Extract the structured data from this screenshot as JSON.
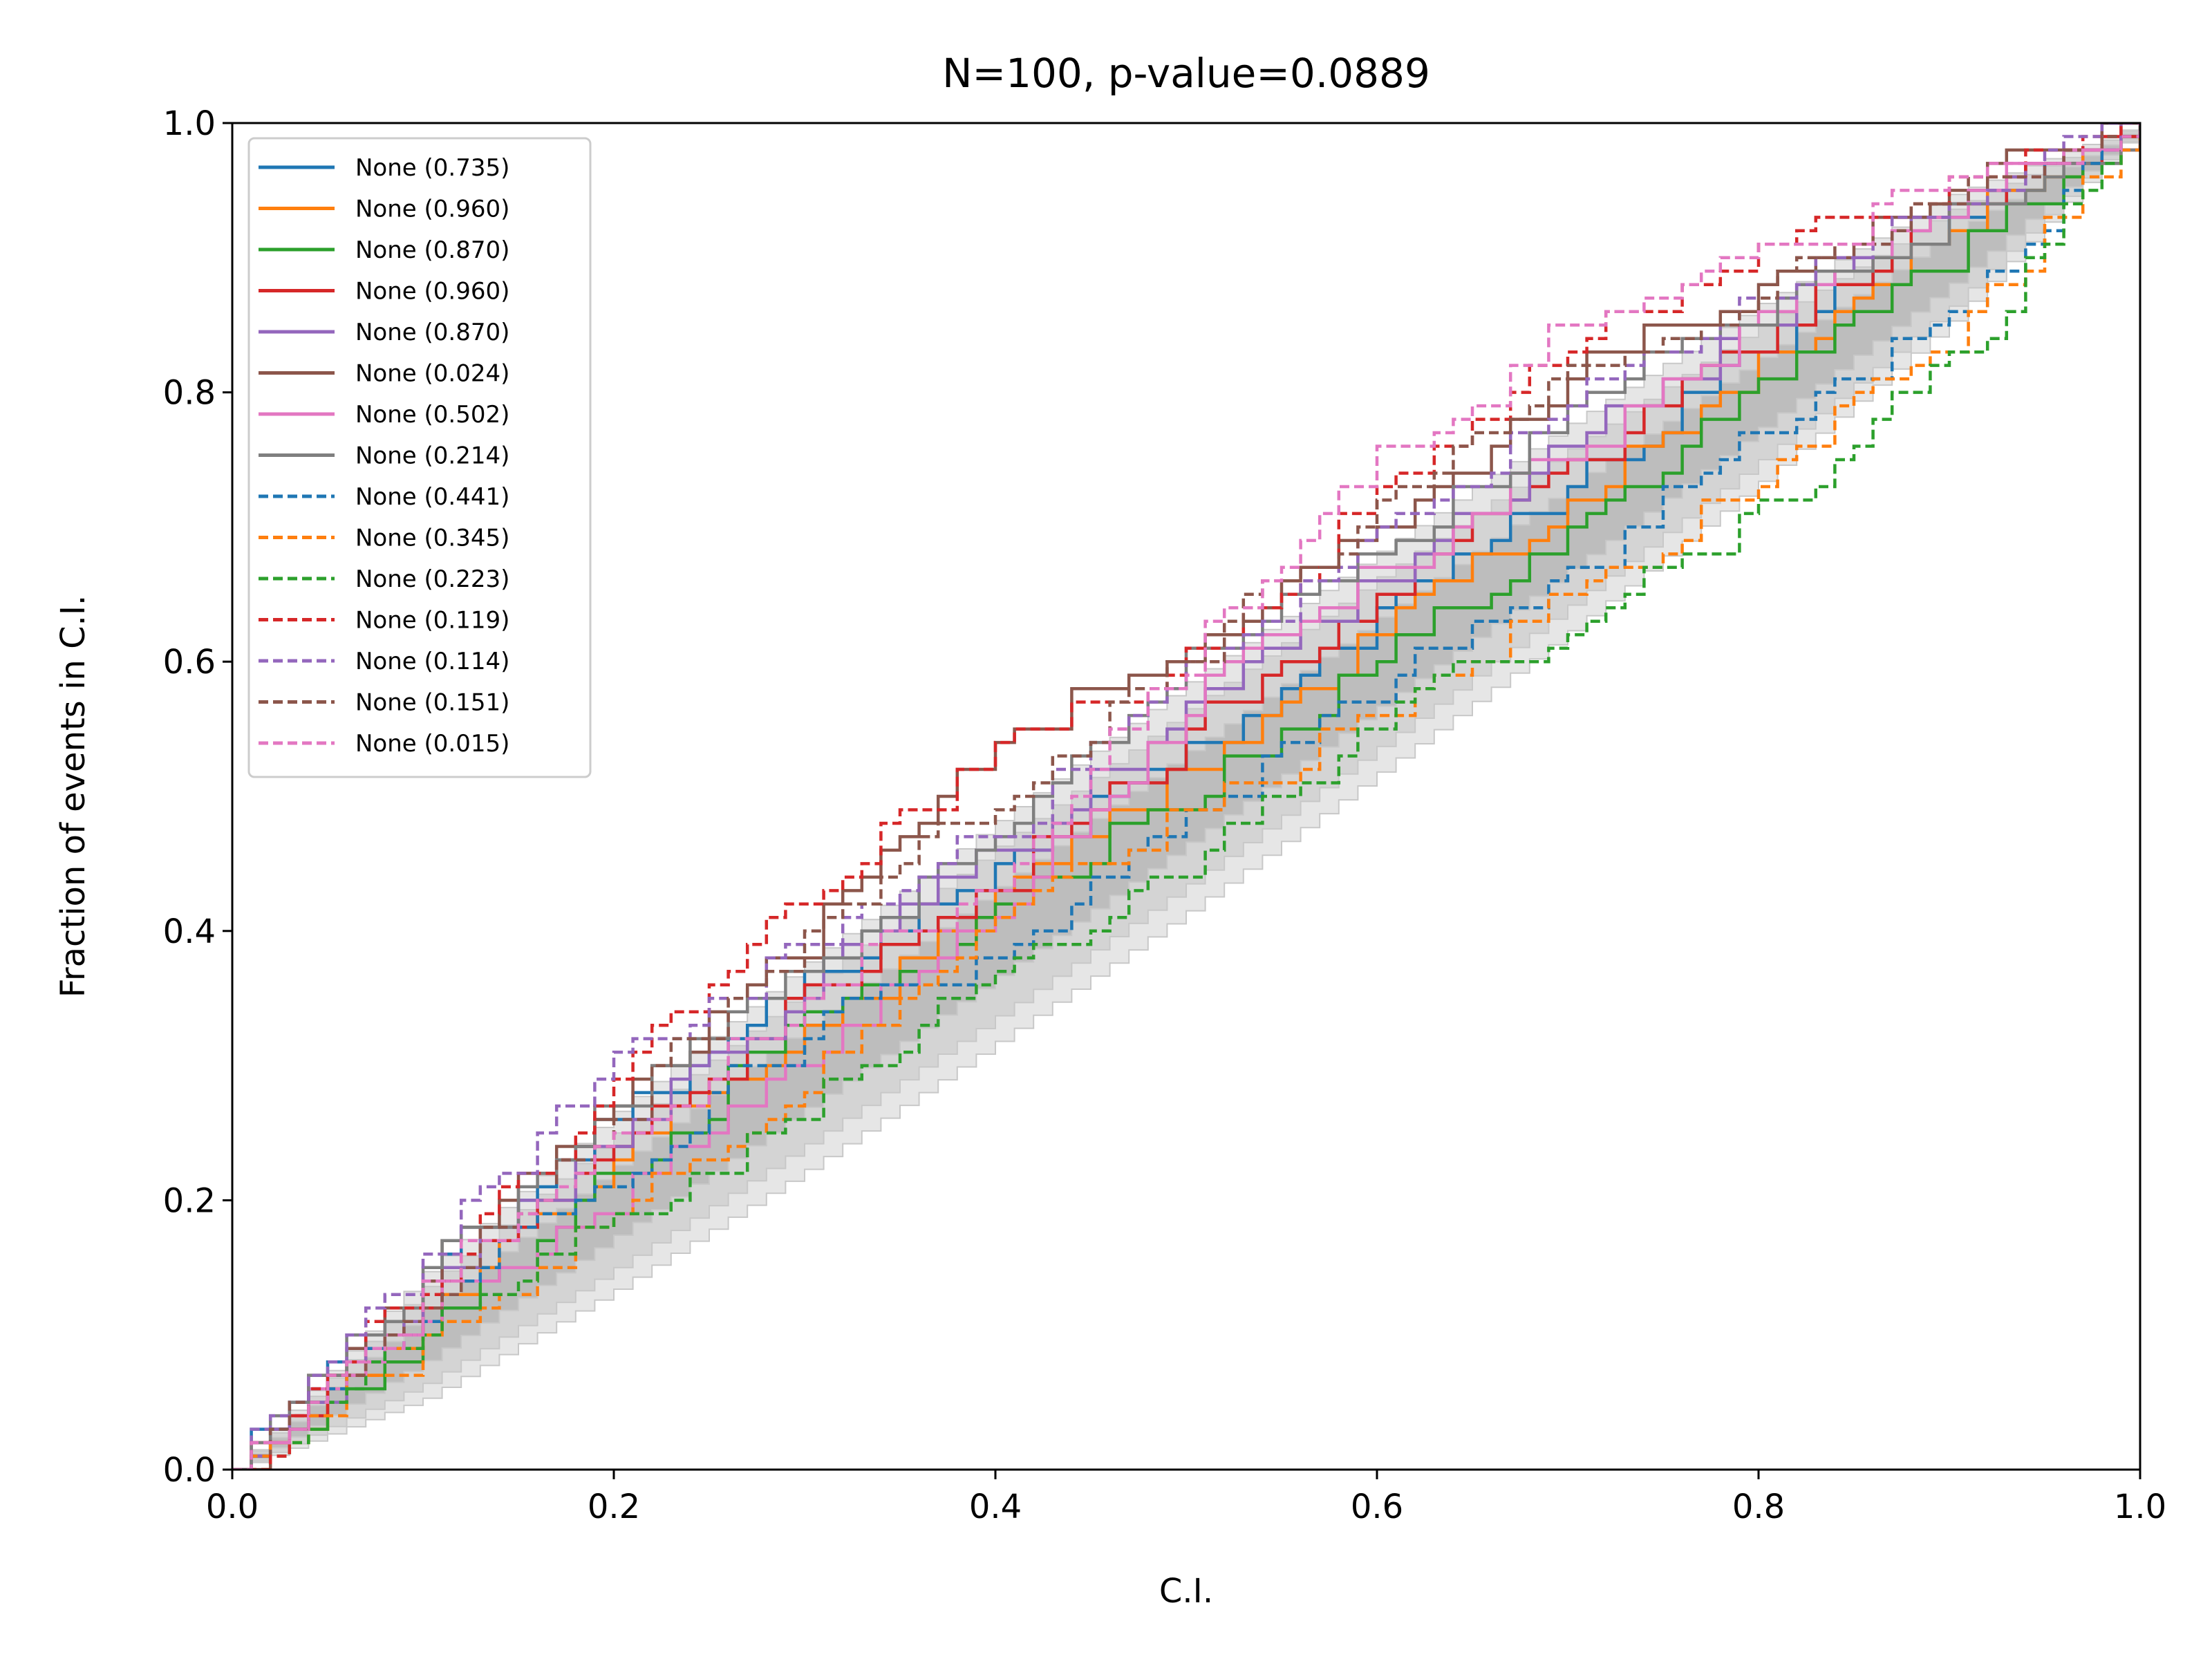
{
  "chart_data": {
    "type": "line",
    "title": "N=100, p-value=0.0889",
    "xlabel": "C.I.",
    "ylabel": "Fraction of events in C.I.",
    "xlim": [
      0,
      1
    ],
    "ylim": [
      0,
      1
    ],
    "x_ticks": [
      "0.0",
      "0.2",
      "0.4",
      "0.6",
      "0.8",
      "1.0"
    ],
    "y_ticks": [
      "0.0",
      "0.2",
      "0.4",
      "0.6",
      "0.8",
      "1.0"
    ],
    "grid": false,
    "legend_position": "top-left",
    "n": 100,
    "bands": [
      {
        "level": "outer",
        "color": "#e6e6e6",
        "halfwidth": [
          0,
          0.047,
          0.066,
          0.077,
          0.082,
          0.085,
          0.082,
          0.077,
          0.066,
          0.047,
          0
        ]
      },
      {
        "level": "middle",
        "color": "#d4d4d4",
        "halfwidth": [
          0,
          0.036,
          0.05,
          0.058,
          0.063,
          0.065,
          0.063,
          0.058,
          0.05,
          0.036,
          0
        ]
      },
      {
        "level": "inner",
        "color": "#bdbdbd",
        "halfwidth": [
          0,
          0.019,
          0.026,
          0.031,
          0.033,
          0.034,
          0.033,
          0.031,
          0.026,
          0.019,
          0
        ]
      }
    ],
    "band_x": [
      0,
      0.1,
      0.2,
      0.3,
      0.4,
      0.5,
      0.6,
      0.7,
      0.8,
      0.9,
      1.0
    ],
    "series": [
      {
        "name": "None (0.735)",
        "color": "#1f77b4",
        "style": "solid",
        "seed": 11,
        "x": [
          0,
          0.1,
          0.2,
          0.3,
          0.4,
          0.5,
          0.6,
          0.7,
          0.8,
          0.9,
          1.0
        ],
        "y": [
          0,
          0.14,
          0.26,
          0.36,
          0.44,
          0.53,
          0.63,
          0.73,
          0.83,
          0.92,
          1.0
        ]
      },
      {
        "name": "None (0.960)",
        "color": "#ff7f0e",
        "style": "solid",
        "seed": 12,
        "x": [
          0,
          0.1,
          0.2,
          0.3,
          0.4,
          0.5,
          0.6,
          0.7,
          0.8,
          0.9,
          1.0
        ],
        "y": [
          0,
          0.11,
          0.23,
          0.32,
          0.42,
          0.52,
          0.62,
          0.72,
          0.82,
          0.92,
          1.0
        ]
      },
      {
        "name": "None (0.870)",
        "color": "#2ca02c",
        "style": "solid",
        "seed": 13,
        "x": [
          0,
          0.1,
          0.2,
          0.3,
          0.4,
          0.5,
          0.6,
          0.7,
          0.8,
          0.9,
          1.0
        ],
        "y": [
          0,
          0.1,
          0.22,
          0.33,
          0.41,
          0.5,
          0.6,
          0.69,
          0.8,
          0.9,
          1.0
        ]
      },
      {
        "name": "None (0.960)",
        "color": "#d62728",
        "style": "solid",
        "seed": 14,
        "x": [
          0,
          0.1,
          0.2,
          0.3,
          0.4,
          0.5,
          0.6,
          0.7,
          0.8,
          0.9,
          1.0
        ],
        "y": [
          0,
          0.12,
          0.24,
          0.35,
          0.43,
          0.54,
          0.65,
          0.74,
          0.84,
          0.93,
          1.0
        ]
      },
      {
        "name": "None (0.870)",
        "color": "#9467bd",
        "style": "solid",
        "seed": 15,
        "x": [
          0,
          0.1,
          0.2,
          0.3,
          0.4,
          0.5,
          0.6,
          0.7,
          0.8,
          0.9,
          1.0
        ],
        "y": [
          0,
          0.13,
          0.25,
          0.36,
          0.45,
          0.56,
          0.66,
          0.76,
          0.85,
          0.93,
          1.0
        ]
      },
      {
        "name": "None (0.024)",
        "color": "#8c564b",
        "style": "solid",
        "seed": 16,
        "x": [
          0,
          0.1,
          0.2,
          0.3,
          0.4,
          0.5,
          0.6,
          0.7,
          0.8,
          0.9,
          1.0
        ],
        "y": [
          0,
          0.14,
          0.27,
          0.39,
          0.55,
          0.6,
          0.7,
          0.81,
          0.88,
          0.95,
          1.0
        ]
      },
      {
        "name": "None (0.502)",
        "color": "#e377c2",
        "style": "solid",
        "seed": 17,
        "x": [
          0,
          0.1,
          0.2,
          0.3,
          0.4,
          0.5,
          0.6,
          0.7,
          0.8,
          0.9,
          1.0
        ],
        "y": [
          0,
          0.12,
          0.2,
          0.31,
          0.41,
          0.57,
          0.66,
          0.75,
          0.85,
          0.93,
          1.0
        ]
      },
      {
        "name": "None (0.214)",
        "color": "#7f7f7f",
        "style": "solid",
        "seed": 18,
        "x": [
          0,
          0.1,
          0.2,
          0.3,
          0.4,
          0.5,
          0.6,
          0.7,
          0.8,
          0.9,
          1.0
        ],
        "y": [
          0,
          0.14,
          0.27,
          0.37,
          0.47,
          0.6,
          0.68,
          0.78,
          0.86,
          0.93,
          1.0
        ]
      },
      {
        "name": "None (0.441)",
        "color": "#1f77b4",
        "style": "dashed",
        "seed": 19,
        "x": [
          0,
          0.1,
          0.2,
          0.3,
          0.4,
          0.5,
          0.6,
          0.7,
          0.8,
          0.9,
          1.0
        ],
        "y": [
          0,
          0.12,
          0.22,
          0.33,
          0.38,
          0.48,
          0.58,
          0.66,
          0.77,
          0.86,
          1.0
        ]
      },
      {
        "name": "None (0.345)",
        "color": "#ff7f0e",
        "style": "dashed",
        "seed": 20,
        "x": [
          0,
          0.1,
          0.2,
          0.3,
          0.4,
          0.5,
          0.6,
          0.7,
          0.8,
          0.9,
          1.0
        ],
        "y": [
          0,
          0.09,
          0.19,
          0.29,
          0.4,
          0.49,
          0.55,
          0.65,
          0.73,
          0.84,
          1.0
        ]
      },
      {
        "name": "None (0.223)",
        "color": "#2ca02c",
        "style": "dashed",
        "seed": 21,
        "x": [
          0,
          0.1,
          0.2,
          0.3,
          0.4,
          0.5,
          0.6,
          0.7,
          0.8,
          0.9,
          1.0
        ],
        "y": [
          0,
          0.1,
          0.18,
          0.27,
          0.36,
          0.45,
          0.56,
          0.63,
          0.71,
          0.82,
          1.0
        ]
      },
      {
        "name": "None (0.119)",
        "color": "#d62728",
        "style": "dashed",
        "seed": 22,
        "x": [
          0,
          0.1,
          0.2,
          0.3,
          0.4,
          0.5,
          0.6,
          0.7,
          0.8,
          0.9,
          1.0
        ],
        "y": [
          0,
          0.14,
          0.29,
          0.43,
          0.53,
          0.6,
          0.72,
          0.83,
          0.9,
          0.95,
          1.0
        ]
      },
      {
        "name": "None (0.114)",
        "color": "#9467bd",
        "style": "dashed",
        "seed": 23,
        "x": [
          0,
          0.1,
          0.2,
          0.3,
          0.4,
          0.5,
          0.6,
          0.7,
          0.8,
          0.9,
          1.0
        ],
        "y": [
          0,
          0.16,
          0.3,
          0.39,
          0.47,
          0.59,
          0.69,
          0.79,
          0.87,
          0.94,
          1.0
        ]
      },
      {
        "name": "None (0.151)",
        "color": "#8c564b",
        "style": "dashed",
        "seed": 24,
        "x": [
          0,
          0.1,
          0.2,
          0.3,
          0.4,
          0.5,
          0.6,
          0.7,
          0.8,
          0.9,
          1.0
        ],
        "y": [
          0,
          0.13,
          0.26,
          0.4,
          0.5,
          0.6,
          0.71,
          0.81,
          0.87,
          0.94,
          1.0
        ]
      },
      {
        "name": "None (0.015)",
        "color": "#e377c2",
        "style": "dashed",
        "seed": 25,
        "x": [
          0,
          0.1,
          0.2,
          0.3,
          0.4,
          0.5,
          0.6,
          0.7,
          0.8,
          0.9,
          1.0
        ],
        "y": [
          0,
          0.13,
          0.24,
          0.35,
          0.44,
          0.6,
          0.75,
          0.84,
          0.9,
          0.95,
          1.0
        ]
      }
    ]
  }
}
